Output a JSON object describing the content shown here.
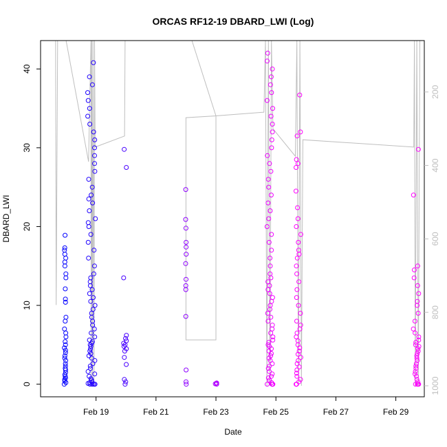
{
  "chart_data": {
    "type": "scatter",
    "title": "ORCAS RF12-19 DBARD_LWI (Log)",
    "xlabel": "Date",
    "ylabel": "DBARD_LWI",
    "x_tick_labels": [
      "Feb 19",
      "Feb 21",
      "Feb 23",
      "Feb 25",
      "Feb 27",
      "Feb 29"
    ],
    "x_tick_values": [
      19,
      21,
      23,
      25,
      27,
      29
    ],
    "xlim": [
      17.15,
      29.95
    ],
    "y_ticks": [
      0,
      10,
      20,
      30,
      40
    ],
    "ylim": [
      -1.6,
      43.6
    ],
    "right_axis": {
      "ticks": [
        200,
        400,
        600,
        800,
        1000
      ],
      "range": [
        60,
        1030
      ],
      "color": "#bebebe"
    },
    "point_color_start": "#0000ff",
    "point_color_end": "#ff00ff",
    "clusters": [
      {
        "x": 17.97,
        "spread": 0.03,
        "values": [
          0,
          0.2,
          0.4,
          0.6,
          0.8,
          1,
          1.2,
          1.5,
          1.8,
          2,
          2.3,
          2.6,
          3,
          3.3,
          3.6,
          4,
          4.3,
          4.6,
          5,
          5.4,
          6,
          6.5,
          7,
          8,
          8.5,
          10.4,
          10.8,
          12.1,
          13.5,
          14,
          15,
          15.5,
          16,
          16.5,
          17,
          17.3,
          18.9
        ]
      },
      {
        "x": 18.85,
        "spread": 0.13,
        "values": [
          0,
          0,
          0,
          0,
          0,
          0.1,
          0.2,
          0.3,
          0.5,
          0.7,
          1,
          1.3,
          1.6,
          2,
          2.3,
          2.6,
          3,
          3.3,
          3.6,
          3.9,
          4.2,
          4.5,
          4.8,
          5,
          5.2,
          5.4,
          5.6,
          6,
          6.5,
          7,
          7.5,
          8,
          8.5,
          9,
          9.5,
          10,
          10.5,
          11,
          11.5,
          12,
          12.5,
          13,
          13.5,
          14,
          15,
          16,
          17,
          18,
          19,
          20,
          20.5,
          21,
          22,
          23,
          23.5,
          24,
          25,
          26,
          27,
          28,
          29,
          30,
          31,
          32,
          33,
          34,
          35,
          36,
          37,
          38,
          39,
          40.8
        ]
      },
      {
        "x": 19.97,
        "spread": 0.05,
        "values": [
          0,
          0.3,
          0.6,
          2.5,
          3.4,
          4.2,
          4.5,
          4.8,
          5,
          5.2,
          5.5,
          5.8,
          6.2,
          13.5,
          27.5,
          29.8
        ]
      },
      {
        "x": 22.0,
        "spread": 0.01,
        "values": [
          0,
          0.3,
          1.8,
          8.6,
          12,
          12.5,
          13.3,
          15.3,
          16.5,
          17.4,
          18,
          19.8,
          20.9,
          24.7
        ]
      },
      {
        "x": 23.0,
        "spread": 0.03,
        "values": [
          0,
          0.05,
          0.1,
          0.15
        ]
      },
      {
        "x": 24.8,
        "spread": 0.1,
        "values": [
          0,
          0,
          0,
          0,
          0,
          0.2,
          0.5,
          0.8,
          1,
          1.3,
          1.6,
          2,
          2.3,
          2.6,
          3,
          3.3,
          3.6,
          3.9,
          4.2,
          4.5,
          4.8,
          5,
          5.3,
          5.6,
          6,
          6.5,
          7,
          7.5,
          8,
          8.5,
          9,
          9.5,
          10,
          10.5,
          11,
          11.5,
          12,
          12.5,
          13,
          13.5,
          14,
          15,
          16,
          17,
          18,
          19,
          20,
          21,
          22,
          23,
          24,
          25,
          26,
          27,
          28,
          29,
          30,
          31,
          32,
          33,
          34,
          35,
          36,
          37,
          38,
          39,
          40,
          41,
          42
        ]
      },
      {
        "x": 25.75,
        "spread": 0.08,
        "values": [
          0,
          0,
          0,
          0,
          0.3,
          0.6,
          1,
          1.4,
          1.8,
          2.2,
          2.6,
          3,
          3.4,
          3.8,
          4.2,
          4.6,
          5,
          5.5,
          6,
          6.5,
          7,
          7.5,
          8,
          9,
          10,
          11,
          12,
          13,
          14,
          15,
          16,
          16.5,
          17,
          18,
          19,
          20,
          21,
          22.4,
          24.5,
          27.5,
          28,
          28.5,
          31.5,
          32,
          36.7
        ]
      },
      {
        "x": 29.67,
        "spread": 0.1,
        "values": [
          0,
          0,
          0,
          0,
          0.3,
          0.6,
          1,
          1.3,
          1.6,
          2,
          2.3,
          2.6,
          3,
          3.3,
          3.6,
          3.9,
          4.2,
          4.5,
          4.8,
          5,
          5.3,
          5.6,
          6,
          6.5,
          7,
          8,
          9,
          10,
          10.5,
          11.5,
          12.5,
          13.5,
          14.5,
          15,
          24,
          29.8
        ]
      }
    ],
    "altitude_line": [
      [
        17.65,
        60
      ],
      [
        17.67,
        780
      ],
      [
        17.72,
        60
      ],
      [
        18.0,
        60
      ],
      [
        18.75,
        390
      ],
      [
        18.83,
        60
      ],
      [
        18.84,
        1000
      ],
      [
        18.86,
        60
      ],
      [
        18.88,
        1000
      ],
      [
        18.9,
        60
      ],
      [
        18.93,
        1000
      ],
      [
        18.95,
        60
      ],
      [
        18.97,
        350
      ],
      [
        19.95,
        320
      ],
      [
        19.97,
        60
      ],
      [
        22.2,
        60
      ],
      [
        23.0,
        265
      ],
      [
        22.0,
        270
      ],
      [
        22.0,
        875
      ],
      [
        23.0,
        875
      ],
      [
        23.0,
        265
      ],
      [
        24.6,
        255
      ],
      [
        24.65,
        60
      ],
      [
        24.7,
        1000
      ],
      [
        24.75,
        60
      ],
      [
        24.8,
        1000
      ],
      [
        24.85,
        60
      ],
      [
        24.9,
        300
      ],
      [
        25.65,
        375
      ],
      [
        25.7,
        60
      ],
      [
        25.75,
        1000
      ],
      [
        25.8,
        60
      ],
      [
        25.85,
        1000
      ],
      [
        25.9,
        330
      ],
      [
        29.6,
        350
      ],
      [
        29.62,
        60
      ],
      [
        29.65,
        1000
      ],
      [
        29.7,
        60
      ],
      [
        29.75,
        1000
      ],
      [
        29.8,
        60
      ]
    ]
  }
}
